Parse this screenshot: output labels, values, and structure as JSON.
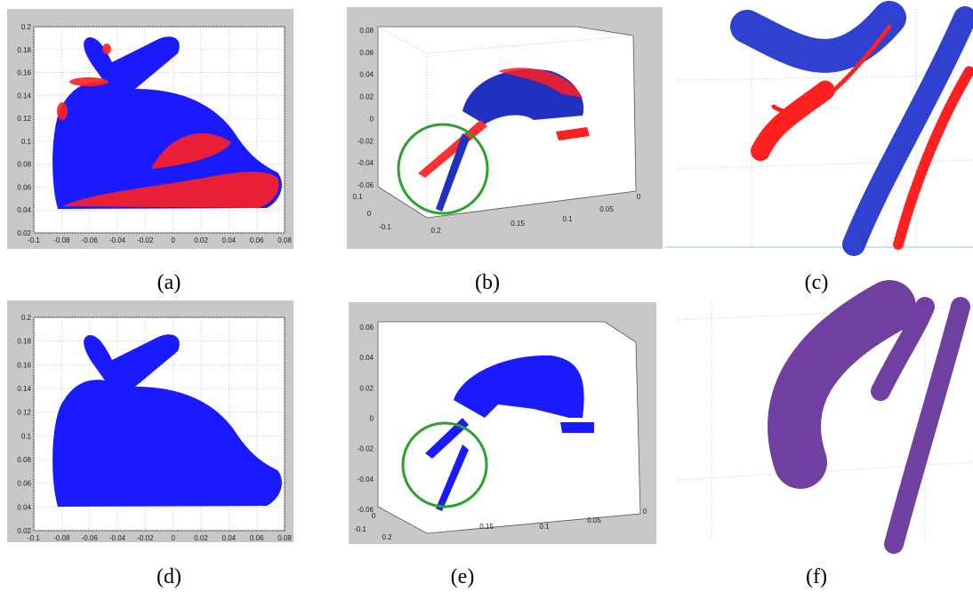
{
  "panels": [
    {
      "label": "(a)",
      "yticks": [
        "0.2",
        "0.18",
        "0.16",
        "0.14",
        "0.12",
        "0.1",
        "0.08",
        "0.06",
        "0.04",
        "0.02"
      ],
      "xticks": [
        "-0.1",
        "-0.08",
        "-0.06",
        "-0.04",
        "-0.02",
        "0",
        "0.02",
        "0.04",
        "0.06",
        "0.08"
      ]
    },
    {
      "label": "(b)",
      "yticks": [
        "0.08",
        "0.06",
        "0.04",
        "0.02",
        "0",
        "-0.02",
        "-0.04",
        "-0.06"
      ],
      "floor_ticks": [
        "0.1",
        "0",
        "-0.1",
        "0.2",
        "0.15",
        "0.1",
        "0.05",
        "0"
      ]
    },
    {
      "label": "(c)"
    },
    {
      "label": "(d)",
      "yticks": [
        "0.2",
        "0.18",
        "0.16",
        "0.14",
        "0.12",
        "0.1",
        "0.08",
        "0.06",
        "0.04",
        "0.02"
      ],
      "xticks": [
        "-0.1",
        "-0.08",
        "-0.06",
        "-0.04",
        "-0.02",
        "0",
        "0.02",
        "0.04",
        "0.06",
        "0.08"
      ]
    },
    {
      "label": "(e)",
      "yticks": [
        "0.06",
        "0.04",
        "0.02",
        "0",
        "-0.02",
        "-0.04",
        "-0.06"
      ],
      "floor_ticks": [
        "0",
        "-0.1",
        "0.2",
        "0.15",
        "0.1",
        "0.05",
        "0"
      ]
    },
    {
      "label": "(f)"
    }
  ]
}
